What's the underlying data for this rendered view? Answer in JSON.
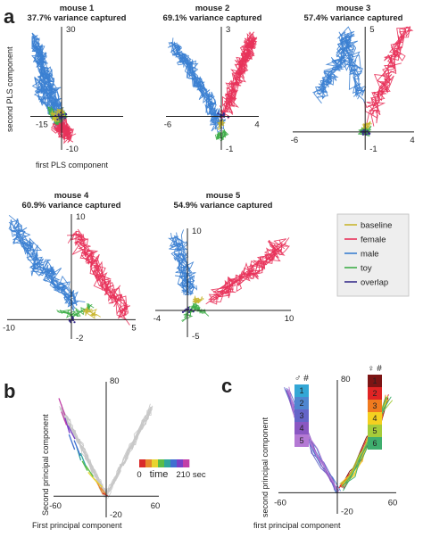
{
  "panel_letters": {
    "a": "a",
    "b": "b",
    "c": "c"
  },
  "panel_a_labels": {
    "xlabel": "first PLS component",
    "ylabel": "second PLS component"
  },
  "legend": {
    "entries": [
      {
        "label": "baseline",
        "color": "#c9b630"
      },
      {
        "label": "female",
        "color": "#e8325a"
      },
      {
        "label": "male",
        "color": "#3b7fd1"
      },
      {
        "label": "toy",
        "color": "#3fae49"
      },
      {
        "label": "overlap",
        "color": "#3a2f8c"
      }
    ]
  },
  "panel_b": {
    "xlabel": "First principal component",
    "ylabel": "Second principal component",
    "colorbar": {
      "min_label": "0",
      "title": "time",
      "max_label": "210 sec",
      "colors": [
        "#d92a2a",
        "#e7882b",
        "#e8d42e",
        "#5bbd46",
        "#2fa59c",
        "#3f6fd0",
        "#7a3fc8",
        "#c23fa8"
      ]
    }
  },
  "panel_c": {
    "xlabel": "first principal component",
    "ylabel": "second principal component",
    "male_header": "♂ #",
    "female_header": "♀ #",
    "male_swatches": [
      {
        "label": "1",
        "color": "#34a7d6"
      },
      {
        "label": "2",
        "color": "#4f86d0"
      },
      {
        "label": "3",
        "color": "#6464c8"
      },
      {
        "label": "4",
        "color": "#8a57c2"
      },
      {
        "label": "5",
        "color": "#b479d4"
      }
    ],
    "female_swatches": [
      {
        "label": "1",
        "color": "#7c1414"
      },
      {
        "label": "2",
        "color": "#e02424"
      },
      {
        "label": "3",
        "color": "#f07a1e"
      },
      {
        "label": "4",
        "color": "#f4d020"
      },
      {
        "label": "5",
        "color": "#a5cc3a"
      },
      {
        "label": "6",
        "color": "#3fae6e"
      }
    ]
  },
  "chart_data": [
    {
      "type": "scatter",
      "panel": "a",
      "title": "mouse 1",
      "subtitle": "37.7% variance captured",
      "xlim": [
        -15,
        30
      ],
      "ylim": [
        -10,
        30
      ],
      "x_ticks": [
        "-15"
      ],
      "y_ticks": [
        "30",
        "-10"
      ],
      "series": [
        {
          "name": "male",
          "x": [
            -14,
            -12,
            -10,
            -8,
            -6,
            -4,
            -2,
            0,
            -9,
            -11
          ],
          "y": [
            26,
            22,
            18,
            14,
            10,
            6,
            2,
            -2,
            6,
            12
          ]
        },
        {
          "name": "female",
          "x": [
            -2,
            0,
            2,
            4
          ],
          "y": [
            -4,
            -3,
            -5,
            -6
          ]
        },
        {
          "name": "toy",
          "x": [
            -6,
            -4,
            -2,
            0,
            2
          ],
          "y": [
            2,
            0,
            -2,
            1,
            0
          ]
        },
        {
          "name": "baseline",
          "x": [
            -5,
            -3,
            -1,
            1
          ],
          "y": [
            1,
            -1,
            2,
            0
          ]
        }
      ]
    },
    {
      "type": "scatter",
      "panel": "a",
      "title": "mouse 2",
      "subtitle": "69.1% variance captured",
      "xlim": [
        -6,
        4
      ],
      "ylim": [
        -1,
        3
      ],
      "x_ticks": [
        "-6",
        "4"
      ],
      "y_ticks": [
        "3",
        "-1"
      ],
      "series": [
        {
          "name": "male",
          "x": [
            -5.5,
            -4.5,
            -3.5,
            -2.5,
            -1.5,
            -0.8,
            -0.3
          ],
          "y": [
            2.4,
            2.0,
            1.6,
            1.1,
            0.6,
            0.1,
            -0.3
          ]
        },
        {
          "name": "female",
          "x": [
            0.4,
            1.0,
            1.6,
            2.2,
            2.8,
            3.3,
            3.7
          ],
          "y": [
            0.1,
            0.6,
            1.1,
            1.6,
            2.0,
            2.4,
            2.6
          ]
        },
        {
          "name": "toy",
          "x": [
            -0.5,
            0,
            0.5
          ],
          "y": [
            -0.6,
            -0.7,
            -0.5
          ]
        },
        {
          "name": "baseline",
          "x": [
            -0.2,
            0.1
          ],
          "y": [
            -0.3,
            -0.2
          ]
        }
      ]
    },
    {
      "type": "scatter",
      "panel": "a",
      "title": "mouse 3",
      "subtitle": "57.4% variance captured",
      "xlim": [
        -6,
        4
      ],
      "ylim": [
        -1,
        5
      ],
      "x_ticks": [
        "-6",
        "4"
      ],
      "y_ticks": [
        "5",
        "-1"
      ],
      "series": [
        {
          "name": "male",
          "x": [
            -4,
            -3,
            -2,
            -1.5,
            -1,
            -0.5
          ],
          "y": [
            1.5,
            2.5,
            3.5,
            4.5,
            3.0,
            1.5
          ]
        },
        {
          "name": "female",
          "x": [
            0.5,
            1.5,
            2.5,
            3.5
          ],
          "y": [
            0.5,
            2,
            3.5,
            5
          ]
        },
        {
          "name": "toy",
          "x": [
            -0.3,
            0,
            0.3
          ],
          "y": [
            -0.2,
            -0.3,
            -0.1
          ]
        },
        {
          "name": "baseline",
          "x": [
            0,
            0.2
          ],
          "y": [
            0,
            0.1
          ]
        }
      ]
    },
    {
      "type": "scatter",
      "panel": "a",
      "title": "mouse 4",
      "subtitle": "60.9% variance captured",
      "xlim": [
        -10,
        5
      ],
      "ylim": [
        -2,
        10
      ],
      "x_ticks": [
        "-10",
        "5"
      ],
      "y_ticks": [
        "10",
        "-2"
      ],
      "series": [
        {
          "name": "male",
          "x": [
            -9.5,
            -8,
            -6.5,
            -5,
            -3.5,
            -2
          ],
          "y": [
            9,
            7,
            5,
            4,
            2.5,
            1
          ]
        },
        {
          "name": "female",
          "x": [
            -2,
            -0.5,
            1,
            2.5,
            4
          ],
          "y": [
            8,
            6,
            4,
            2,
            0
          ]
        },
        {
          "name": "toy",
          "x": [
            -4,
            -2,
            0
          ],
          "y": [
            0.5,
            0,
            1
          ]
        },
        {
          "name": "baseline",
          "x": [
            -1,
            0.5
          ],
          "y": [
            0.5,
            0
          ]
        }
      ]
    },
    {
      "type": "scatter",
      "panel": "a",
      "title": "mouse 5",
      "subtitle": "54.9% variance captured",
      "xlim": [
        -4,
        10
      ],
      "ylim": [
        -5,
        10
      ],
      "x_ticks": [
        "-4",
        "10"
      ],
      "y_ticks": [
        "10",
        "-5"
      ],
      "series": [
        {
          "name": "male",
          "x": [
            -2,
            -1.5,
            -1,
            -0.5
          ],
          "y": [
            9,
            6,
            3,
            1
          ]
        },
        {
          "name": "female",
          "x": [
            2,
            4,
            6,
            8,
            9.5
          ],
          "y": [
            0,
            2,
            4,
            6,
            8
          ]
        },
        {
          "name": "toy",
          "x": [
            -1,
            0,
            1
          ],
          "y": [
            -3,
            -1,
            -2
          ]
        },
        {
          "name": "baseline",
          "x": [
            0,
            0.5
          ],
          "y": [
            -0.5,
            0
          ]
        }
      ]
    },
    {
      "type": "line",
      "panel": "b",
      "xlim": [
        -60,
        60
      ],
      "ylim": [
        -20,
        80
      ],
      "x_ticks": [
        "-60",
        "60"
      ],
      "y_ticks": [
        "80",
        "-20"
      ],
      "series": [
        {
          "x": [
            -58,
            -52,
            -45,
            -38,
            -30,
            -22,
            -12,
            -4,
            0
          ],
          "y": [
            70,
            55,
            40,
            28,
            18,
            10,
            2,
            -8,
            -10
          ]
        },
        {
          "x": [
            -55,
            -48,
            -40,
            -32,
            -24,
            -15,
            -6,
            0
          ],
          "y": [
            60,
            48,
            35,
            25,
            15,
            6,
            -2,
            -8
          ]
        }
      ]
    },
    {
      "type": "line",
      "panel": "c",
      "xlim": [
        -60,
        60
      ],
      "ylim": [
        -20,
        80
      ],
      "x_ticks": [
        "-60",
        "60"
      ],
      "y_ticks": [
        "80",
        "-20"
      ],
      "series": [
        {
          "x": [
            -55,
            -45,
            -35,
            -25,
            -15,
            -5,
            0
          ],
          "y": [
            75,
            55,
            40,
            25,
            12,
            0,
            -8
          ]
        },
        {
          "x": [
            5,
            15,
            25,
            35,
            45,
            55
          ],
          "y": [
            -5,
            5,
            18,
            35,
            52,
            68
          ]
        }
      ]
    }
  ]
}
